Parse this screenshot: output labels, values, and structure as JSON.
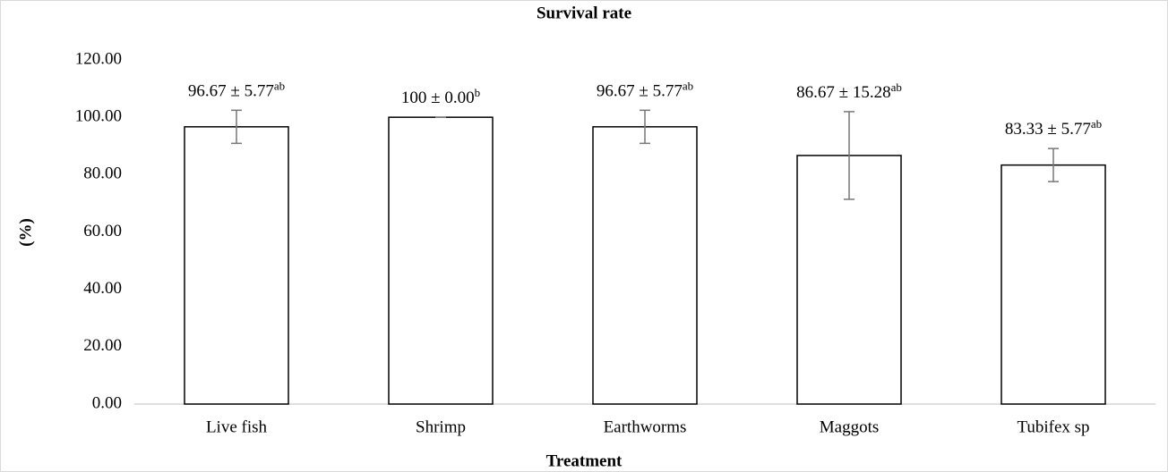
{
  "chart_data": {
    "type": "bar",
    "title": "Survival rate",
    "x_label": "Treatment",
    "y_label": "(%)",
    "categories": [
      "Live fish",
      "Shrimp",
      "Earthworms",
      "Maggots",
      "Tubifex sp"
    ],
    "values": [
      96.67,
      100,
      96.67,
      86.67,
      83.33
    ],
    "errors": [
      5.77,
      0,
      5.77,
      15.28,
      5.77
    ],
    "value_labels": [
      "96.67 ± 5.77",
      "100 ± 0.00",
      "96.67 ± 5.77",
      "86.67 ± 15.28",
      "83.33 ± 5.77"
    ],
    "letters": [
      "ab",
      "b",
      "ab",
      "ab",
      "ab"
    ],
    "color": "#ffffff",
    "ylim": [
      0,
      120
    ],
    "yticks": [
      {
        "value": 0,
        "label": "0.00"
      },
      {
        "value": 20,
        "label": "20.00"
      },
      {
        "value": 40,
        "label": "40.00"
      },
      {
        "value": 60,
        "label": "60.00"
      },
      {
        "value": 80,
        "label": "80.00"
      },
      {
        "value": 100,
        "label": "100.00"
      },
      {
        "value": 120,
        "label": "120.00"
      }
    ],
    "grid": false
  }
}
